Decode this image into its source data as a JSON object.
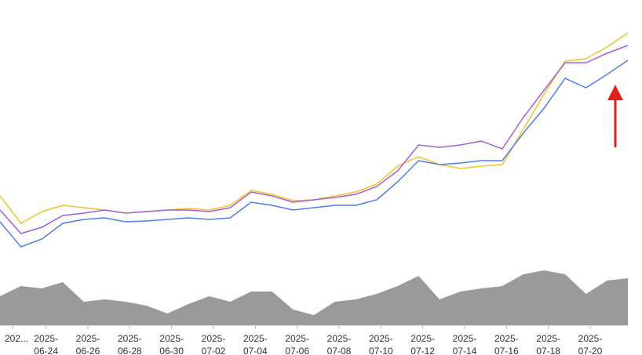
{
  "chart_data": {
    "type": "line",
    "x": [
      0,
      1,
      2,
      3,
      4,
      5,
      6,
      7,
      8,
      9,
      10,
      11,
      12,
      13,
      14,
      15,
      16,
      17,
      18,
      19,
      20,
      21,
      22,
      23,
      24,
      25,
      26,
      27,
      28,
      29,
      30
    ],
    "xlim": [
      0,
      30
    ],
    "xticks": [
      {
        "value": 0.6,
        "label": "202..."
      },
      {
        "value": 2.2,
        "label": "2025-06-24"
      },
      {
        "value": 4.2,
        "label": "2025-06-26"
      },
      {
        "value": 6.2,
        "label": "2025-06-28"
      },
      {
        "value": 8.2,
        "label": "2025-06-30"
      },
      {
        "value": 10.2,
        "label": "2025-07-02"
      },
      {
        "value": 12.2,
        "label": "2025-07-04"
      },
      {
        "value": 14.2,
        "label": "2025-07-06"
      },
      {
        "value": 16.2,
        "label": "2025-07-08"
      },
      {
        "value": 18.2,
        "label": "2025-07-10"
      },
      {
        "value": 20.2,
        "label": "2025-07-12"
      },
      {
        "value": 22.2,
        "label": "2025-07-14"
      },
      {
        "value": 24.2,
        "label": "2025-07-16"
      },
      {
        "value": 26.2,
        "label": "2025-07-18"
      },
      {
        "value": 28.2,
        "label": "2025-07-20"
      }
    ],
    "ylim": [
      0,
      415
    ],
    "y2lim": [
      0,
      415
    ],
    "series": [
      {
        "color": "#f2c230",
        "values": [
          165,
          130,
          145,
          153,
          150,
          147,
          143,
          145,
          147,
          149,
          147,
          153,
          172,
          167,
          159,
          160,
          165,
          170,
          180,
          203,
          215,
          205,
          200,
          203,
          205,
          250,
          295,
          337,
          340,
          355,
          373
        ]
      },
      {
        "color": "#a45fd8",
        "values": [
          147,
          117,
          125,
          140,
          143,
          147,
          143,
          145,
          147,
          147,
          145,
          150,
          170,
          165,
          157,
          160,
          163,
          167,
          177,
          197,
          230,
          227,
          230,
          235,
          225,
          265,
          300,
          335,
          335,
          347,
          357
        ]
      },
      {
        "color": "#4f7fe6",
        "values": [
          132,
          100,
          110,
          130,
          135,
          137,
          132,
          133,
          135,
          137,
          135,
          137,
          157,
          153,
          147,
          150,
          153,
          153,
          160,
          183,
          210,
          205,
          207,
          210,
          210,
          245,
          277,
          315,
          303,
          320,
          338
        ]
      },
      {
        "color": "#9a9a9a",
        "axis": "y2",
        "values": [
          37,
          50,
          47,
          55,
          30,
          33,
          30,
          25,
          15,
          27,
          37,
          30,
          43,
          43,
          20,
          13,
          30,
          33,
          40,
          50,
          63,
          33,
          43,
          47,
          50,
          65,
          70,
          65,
          40,
          57,
          60
        ]
      }
    ]
  }
}
